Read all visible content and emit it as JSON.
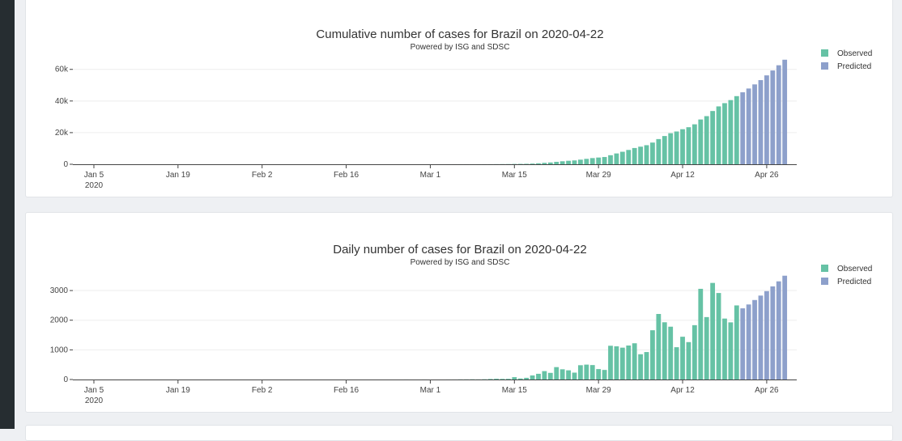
{
  "colors": {
    "observed": "#66c2a5",
    "predicted": "#8da0cb",
    "axis": "#444444",
    "grid": "#eeeeee"
  },
  "chart_data": [
    {
      "type": "bar",
      "title": "Cumulative number of cases for Brazil on 2020-04-22",
      "subtitle": "Powered by ISG and SDSC",
      "xlabel": "",
      "ylabel": "",
      "x_start": "2020-01-01",
      "x_ticks": [
        {
          "label": "Jan 5",
          "sub": "2020",
          "date": "2020-01-05"
        },
        {
          "label": "Jan 19",
          "date": "2020-01-19"
        },
        {
          "label": "Feb 2",
          "date": "2020-02-02"
        },
        {
          "label": "Feb 16",
          "date": "2020-02-16"
        },
        {
          "label": "Mar 1",
          "date": "2020-03-01"
        },
        {
          "label": "Mar 15",
          "date": "2020-03-15"
        },
        {
          "label": "Mar 29",
          "date": "2020-03-29"
        },
        {
          "label": "Apr 12",
          "date": "2020-04-12"
        },
        {
          "label": "Apr 26",
          "date": "2020-04-26"
        }
      ],
      "y_ticks": [
        {
          "label": "0",
          "value": 0
        },
        {
          "label": "20k",
          "value": 20000
        },
        {
          "label": "40k",
          "value": 40000
        },
        {
          "label": "60k",
          "value": 60000
        }
      ],
      "ylim": [
        0,
        66000
      ],
      "legend": [
        "Observed",
        "Predicted"
      ],
      "legend_position": "top-right",
      "series": [
        {
          "name": "Observed",
          "x_first": "2020-02-26",
          "values": [
            1,
            1,
            1,
            2,
            2,
            2,
            2,
            3,
            4,
            8,
            13,
            20,
            25,
            34,
            52,
            77,
            98,
            121,
            200,
            234,
            291,
            428,
            621,
            904,
            1128,
            1546,
            1891,
            2201,
            2433,
            2915,
            3417,
            3904,
            4256,
            4579,
            5717,
            6836,
            7910,
            9056,
            10278,
            11130,
            12056,
            13717,
            15927,
            17857,
            19638,
            20727,
            22169,
            23430,
            25262,
            28320,
            30425,
            33682,
            36599,
            38654,
            40581,
            43079
          ]
        },
        {
          "name": "Predicted",
          "x_first": "2020-04-22",
          "values": [
            45500,
            47900,
            50500,
            53200,
            56200,
            59300,
            62600,
            66100
          ]
        }
      ]
    },
    {
      "type": "bar",
      "title": "Daily number of cases for Brazil on 2020-04-22",
      "subtitle": "Powered by ISG and SDSC",
      "xlabel": "",
      "ylabel": "",
      "x_start": "2020-01-01",
      "x_ticks": [
        {
          "label": "Jan 5",
          "sub": "2020",
          "date": "2020-01-05"
        },
        {
          "label": "Jan 19",
          "date": "2020-01-19"
        },
        {
          "label": "Feb 2",
          "date": "2020-02-02"
        },
        {
          "label": "Feb 16",
          "date": "2020-02-16"
        },
        {
          "label": "Mar 1",
          "date": "2020-03-01"
        },
        {
          "label": "Mar 15",
          "date": "2020-03-15"
        },
        {
          "label": "Mar 29",
          "date": "2020-03-29"
        },
        {
          "label": "Apr 12",
          "date": "2020-04-12"
        },
        {
          "label": "Apr 26",
          "date": "2020-04-26"
        }
      ],
      "y_ticks": [
        {
          "label": "0",
          "value": 0
        },
        {
          "label": "1000",
          "value": 1000
        },
        {
          "label": "2000",
          "value": 2000
        },
        {
          "label": "3000",
          "value": 3000
        }
      ],
      "ylim": [
        0,
        3520
      ],
      "legend": [
        "Observed",
        "Predicted"
      ],
      "legend_position": "top-right",
      "series": [
        {
          "name": "Observed",
          "x_first": "2020-02-26",
          "values": [
            1,
            0,
            0,
            1,
            0,
            0,
            0,
            1,
            1,
            4,
            5,
            7,
            5,
            9,
            18,
            25,
            21,
            23,
            79,
            34,
            57,
            137,
            193,
            283,
            224,
            418,
            345,
            310,
            232,
            482,
            502,
            487,
            352,
            323,
            1138,
            1119,
            1074,
            1146,
            1222,
            852,
            926,
            1661,
            2210,
            1930,
            1781,
            1089,
            1442,
            1261,
            1832,
            3058,
            2105,
            3257,
            2917,
            2055,
            1927,
            2498
          ]
        },
        {
          "name": "Predicted",
          "x_first": "2020-04-22",
          "values": [
            2400,
            2530,
            2680,
            2830,
            2980,
            3140,
            3310,
            3500
          ]
        }
      ]
    }
  ]
}
